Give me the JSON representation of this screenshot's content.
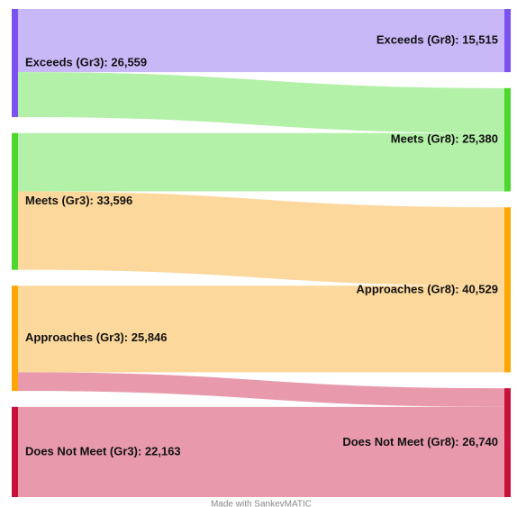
{
  "chart_data": {
    "type": "sankey",
    "nodes": [
      {
        "label": "Exceeds (Gr3): 26,559",
        "value": 26559,
        "color": "#7b52f0"
      },
      {
        "label": "Meets (Gr3): 33,596",
        "value": 33596,
        "color": "#4cd62e"
      },
      {
        "label": "Approaches (Gr3): 25,846",
        "value": 25846,
        "color": "#ffa500"
      },
      {
        "label": "Does Not Meet (Gr3): 22,163",
        "value": 22163,
        "color": "#c8103c"
      },
      {
        "label": "Exceeds (Gr8): 15,515",
        "value": 15515,
        "color": "#7b52f0"
      },
      {
        "label": "Meets (Gr8): 25,380",
        "value": 25380,
        "color": "#4cd62e"
      },
      {
        "label": "Approaches (Gr8): 40,529",
        "value": 40529,
        "color": "#ffa500"
      },
      {
        "label": "Does Not Meet (Gr8): 26,740",
        "value": 26740,
        "color": "#c8103c"
      }
    ],
    "links": [
      {
        "source": 0,
        "target": 4,
        "value": 15515,
        "color": "#c9b8f8"
      },
      {
        "source": 0,
        "target": 5,
        "value": 11044,
        "color": "#b3f0a8"
      },
      {
        "source": 1,
        "target": 5,
        "value": 14336,
        "color": "#b3f0a8"
      },
      {
        "source": 1,
        "target": 6,
        "value": 19260,
        "color": "#fdd89c"
      },
      {
        "source": 2,
        "target": 6,
        "value": 21269,
        "color": "#fdd89c"
      },
      {
        "source": 2,
        "target": 7,
        "value": 4577,
        "color": "#e89aac"
      },
      {
        "source": 3,
        "target": 7,
        "value": 22163,
        "color": "#e89aac"
      }
    ],
    "footer": "Made with SankeyMATIC"
  }
}
